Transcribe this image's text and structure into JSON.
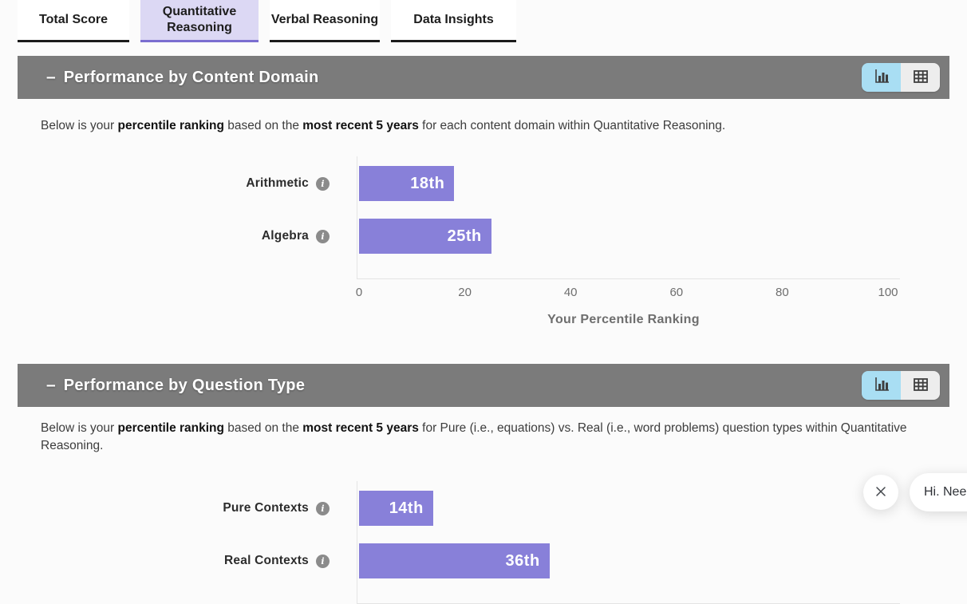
{
  "tabs": [
    {
      "label": "Total Score",
      "active": false
    },
    {
      "label": "Quantitative Reasoning",
      "active": true
    },
    {
      "label": "Verbal Reasoning",
      "active": false
    },
    {
      "label": "Data Insights",
      "active": false
    }
  ],
  "sections": [
    {
      "title": "Performance by Content Domain",
      "collapse_indicator": "–",
      "description_parts": [
        {
          "text": "Below is your ",
          "bold": false
        },
        {
          "text": "percentile ranking",
          "bold": true
        },
        {
          "text": " based on the ",
          "bold": false
        },
        {
          "text": "most recent 5 years",
          "bold": true
        },
        {
          "text": " for each content domain within Quantitative Reasoning.",
          "bold": false
        }
      ],
      "view_toggle": {
        "selected": "chart",
        "chart_icon": "bar-chart-icon",
        "table_icon": "table-icon"
      }
    },
    {
      "title": "Performance by Question Type",
      "collapse_indicator": "–",
      "description_parts": [
        {
          "text": "Below is your ",
          "bold": false
        },
        {
          "text": "percentile ranking",
          "bold": true
        },
        {
          "text": " based on the ",
          "bold": false
        },
        {
          "text": "most recent 5 years",
          "bold": true
        },
        {
          "text": " for Pure (i.e., equations) vs. Real (i.e., word problems) question types within Quantitative Reasoning.",
          "bold": false
        }
      ],
      "view_toggle": {
        "selected": "chart",
        "chart_icon": "bar-chart-icon",
        "table_icon": "table-icon"
      }
    }
  ],
  "chart_data": [
    {
      "type": "bar",
      "orientation": "horizontal",
      "title": "Performance by Content Domain",
      "categories": [
        "Arithmetic",
        "Algebra"
      ],
      "values": [
        18,
        25
      ],
      "value_labels": [
        "18th",
        "25th"
      ],
      "xticks": [
        0,
        20,
        40,
        60,
        80,
        100
      ],
      "xlim": [
        0,
        100
      ],
      "xlabel": "Your Percentile Ranking",
      "grid": false,
      "bar_color": "#8880d9"
    },
    {
      "type": "bar",
      "orientation": "horizontal",
      "title": "Performance by Question Type",
      "categories": [
        "Pure Contexts",
        "Real Contexts"
      ],
      "values": [
        14,
        36
      ],
      "value_labels": [
        "14th",
        "36th"
      ],
      "xlim": [
        0,
        100
      ],
      "grid": false,
      "bar_color": "#8880d9"
    }
  ],
  "chat_widget": {
    "message": "Hi. Nee",
    "close_icon": "close-icon"
  },
  "colors": {
    "bar": "#8880d9",
    "header_bg": "#7b7b7b",
    "tab_active_bg": "#dcd8f4",
    "tab_active_line": "#7a6ed0",
    "toggle_active_bg": "#a9def3"
  }
}
